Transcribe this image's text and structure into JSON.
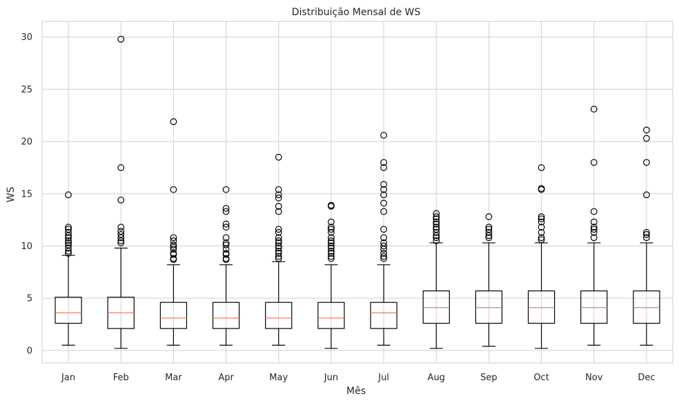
{
  "chart_data": {
    "type": "box",
    "title": "Distribuição Mensal de WS",
    "xlabel": "Mês",
    "ylabel": "WS",
    "ylim": [
      -1.2,
      31.5
    ],
    "yticks": [
      0,
      5,
      10,
      15,
      20,
      25,
      30
    ],
    "grid": true,
    "colors": {
      "box": "#000000",
      "median": "#e8825c",
      "grid": "#d0d0d0",
      "frame": "#cccccc"
    },
    "categories": [
      "Jan",
      "Feb",
      "Mar",
      "Apr",
      "May",
      "Jun",
      "Jul",
      "Aug",
      "Sep",
      "Oct",
      "Nov",
      "Dec"
    ],
    "boxes": [
      {
        "whisker_low": 0.5,
        "q1": 2.6,
        "median": 3.6,
        "q3": 5.1,
        "whisker_high": 9.1,
        "fliers": [
          9.3,
          9.5,
          9.8,
          10.1,
          10.3,
          10.5,
          10.8,
          11.0,
          11.3,
          11.6,
          11.8,
          14.9
        ]
      },
      {
        "whisker_low": 0.2,
        "q1": 2.1,
        "median": 3.6,
        "q3": 5.1,
        "whisker_high": 9.8,
        "fliers": [
          10.3,
          10.5,
          10.8,
          11.1,
          11.4,
          11.8,
          14.4,
          17.5,
          29.8
        ]
      },
      {
        "whisker_low": 0.5,
        "q1": 2.1,
        "median": 3.1,
        "q3": 4.6,
        "whisker_high": 8.2,
        "fliers": [
          8.7,
          8.8,
          9.2,
          9.3,
          9.7,
          9.9,
          10.1,
          10.5,
          10.8,
          15.4,
          21.9
        ]
      },
      {
        "whisker_low": 0.5,
        "q1": 2.1,
        "median": 3.1,
        "q3": 4.6,
        "whisker_high": 8.2,
        "fliers": [
          8.7,
          8.8,
          9.2,
          9.3,
          9.7,
          10.1,
          10.3,
          10.8,
          11.8,
          12.1,
          13.3,
          13.6,
          15.4
        ]
      },
      {
        "whisker_low": 0.5,
        "q1": 2.1,
        "median": 3.1,
        "q3": 4.6,
        "whisker_high": 8.5,
        "fliers": [
          8.8,
          9.0,
          9.3,
          9.5,
          9.8,
          10.0,
          10.3,
          10.5,
          10.8,
          11.3,
          11.6,
          13.3,
          13.8,
          14.6,
          14.9,
          15.4,
          18.5
        ]
      },
      {
        "whisker_low": 0.2,
        "q1": 2.1,
        "median": 3.1,
        "q3": 4.6,
        "whisker_high": 8.2,
        "fliers": [
          8.8,
          9.0,
          9.3,
          9.5,
          9.8,
          10.0,
          10.3,
          10.5,
          10.8,
          11.3,
          11.6,
          11.8,
          12.3,
          13.8,
          13.9
        ]
      },
      {
        "whisker_low": 0.5,
        "q1": 2.1,
        "median": 3.6,
        "q3": 4.6,
        "whisker_high": 8.2,
        "fliers": [
          8.8,
          9.0,
          9.3,
          9.7,
          10.0,
          10.3,
          10.8,
          11.6,
          13.3,
          14.1,
          14.9,
          15.4,
          15.9,
          17.5,
          18.0,
          20.6
        ]
      },
      {
        "whisker_low": 0.2,
        "q1": 2.6,
        "median": 4.1,
        "q3": 5.7,
        "whisker_high": 10.3,
        "fliers": [
          10.5,
          10.8,
          11.0,
          11.3,
          11.6,
          11.8,
          12.1,
          12.3,
          12.6,
          12.8,
          13.1
        ]
      },
      {
        "whisker_low": 0.4,
        "q1": 2.6,
        "median": 4.1,
        "q3": 5.7,
        "whisker_high": 10.3,
        "fliers": [
          10.8,
          11.0,
          11.3,
          11.6,
          11.8,
          12.8
        ]
      },
      {
        "whisker_low": 0.2,
        "q1": 2.6,
        "median": 4.1,
        "q3": 5.7,
        "whisker_high": 10.3,
        "fliers": [
          10.6,
          10.8,
          11.3,
          11.8,
          12.3,
          12.6,
          12.8,
          15.4,
          15.5,
          17.5
        ]
      },
      {
        "whisker_low": 0.5,
        "q1": 2.6,
        "median": 4.1,
        "q3": 5.7,
        "whisker_high": 10.3,
        "fliers": [
          10.8,
          11.3,
          11.6,
          11.8,
          12.3,
          13.3,
          18.0,
          23.1
        ]
      },
      {
        "whisker_low": 0.5,
        "q1": 2.6,
        "median": 4.1,
        "q3": 5.7,
        "whisker_high": 10.3,
        "fliers": [
          10.8,
          11.1,
          11.3,
          14.9,
          18.0,
          20.3,
          21.1
        ]
      }
    ]
  }
}
